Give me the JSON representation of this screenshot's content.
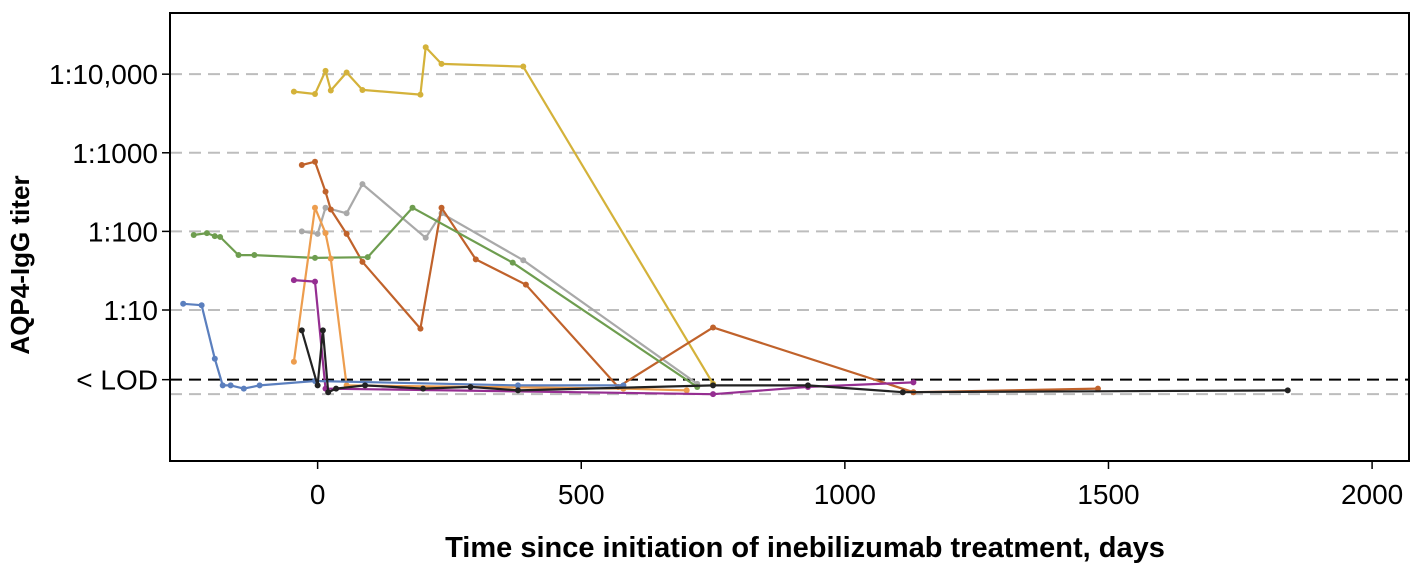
{
  "chart_data": {
    "type": "line",
    "title": "",
    "xlabel": "Time since initiation of inebilizumab treatment, days",
    "ylabel": "AQP4-IgG titer",
    "xlim": [
      -280,
      2070
    ],
    "x_ticks": [
      0,
      500,
      1000,
      1500,
      2000
    ],
    "y_scale": "log10 titer (reciprocal dilution); values below detection plotted beneath the LOD line",
    "ylim": [
      0.12,
      60000
    ],
    "y_ticks": [
      {
        "value": 10000,
        "label": "1:10,000"
      },
      {
        "value": 1000,
        "label": "1:1000"
      },
      {
        "value": 100,
        "label": "1:100"
      },
      {
        "value": 10,
        "label": "1:10"
      }
    ],
    "lod": {
      "value": 1.3,
      "label": "< LOD"
    },
    "lower_reference": 0.85,
    "grid": "horizontal dashed at labeled ticks",
    "legend": "none",
    "series": [
      {
        "color": "#D4B23A",
        "points": [
          [
            -45,
            6000
          ],
          [
            -5,
            5600
          ],
          [
            15,
            11000
          ],
          [
            25,
            6200
          ],
          [
            55,
            10500
          ],
          [
            85,
            6300
          ],
          [
            195,
            5500
          ],
          [
            205,
            22000
          ],
          [
            235,
            13500
          ],
          [
            390,
            12500
          ],
          [
            750,
            1.15
          ]
        ]
      },
      {
        "color": "#A9A9A9",
        "points": [
          [
            -30,
            100
          ],
          [
            0,
            93
          ],
          [
            15,
            200
          ],
          [
            55,
            170
          ],
          [
            85,
            400
          ],
          [
            205,
            83
          ],
          [
            235,
            170
          ],
          [
            390,
            43
          ],
          [
            720,
            1.15
          ]
        ]
      },
      {
        "color": "#C0622B",
        "points": [
          [
            -30,
            700
          ],
          [
            -5,
            770
          ],
          [
            15,
            320
          ],
          [
            25,
            190
          ],
          [
            55,
            93
          ],
          [
            85,
            41
          ],
          [
            195,
            5.8
          ],
          [
            235,
            200
          ],
          [
            300,
            44
          ],
          [
            395,
            21
          ],
          [
            570,
            1.05
          ],
          [
            750,
            6
          ],
          [
            1130,
            0.9
          ],
          [
            1480,
            1.0
          ]
        ]
      },
      {
        "color": "#6E9D4F",
        "points": [
          [
            -235,
            90
          ],
          [
            -210,
            95
          ],
          [
            -195,
            87
          ],
          [
            -185,
            85
          ],
          [
            -150,
            50
          ],
          [
            -120,
            50
          ],
          [
            -5,
            46
          ],
          [
            95,
            47
          ],
          [
            180,
            200
          ],
          [
            370,
            40
          ],
          [
            720,
            1.05
          ]
        ]
      },
      {
        "color": "#ED9D4E",
        "points": [
          [
            -45,
            2.2
          ],
          [
            -5,
            200
          ],
          [
            15,
            95
          ],
          [
            25,
            45
          ],
          [
            55,
            1.1
          ],
          [
            580,
            1.0
          ],
          [
            700,
            0.95
          ]
        ]
      },
      {
        "color": "#952E91",
        "points": [
          [
            -45,
            24
          ],
          [
            -5,
            23
          ],
          [
            15,
            1.0
          ],
          [
            750,
            0.85
          ],
          [
            930,
            1.05
          ],
          [
            1130,
            1.2
          ]
        ]
      },
      {
        "color": "#5B7FBE",
        "points": [
          [
            -255,
            12
          ],
          [
            -220,
            11.5
          ],
          [
            -195,
            2.4
          ],
          [
            -180,
            1.1
          ],
          [
            -165,
            1.1
          ],
          [
            -140,
            1.0
          ],
          [
            -110,
            1.1
          ],
          [
            -5,
            1.25
          ],
          [
            380,
            1.1
          ],
          [
            580,
            1.1
          ]
        ]
      },
      {
        "color": "#222222",
        "points": [
          [
            -30,
            5.5
          ],
          [
            0,
            1.1
          ],
          [
            10,
            5.5
          ],
          [
            20,
            0.9
          ],
          [
            35,
            1.0
          ],
          [
            90,
            1.1
          ],
          [
            200,
            1.0
          ],
          [
            290,
            1.05
          ],
          [
            380,
            0.95
          ],
          [
            750,
            1.1
          ],
          [
            930,
            1.1
          ],
          [
            1110,
            0.9
          ],
          [
            1840,
            0.95
          ]
        ]
      }
    ]
  }
}
